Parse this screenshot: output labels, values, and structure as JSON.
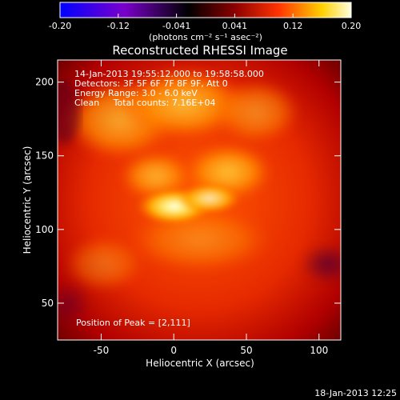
{
  "chart_data": {
    "type": "heatmap",
    "title": "Reconstructed RHESSI Image",
    "xlabel": "Heliocentric X (arcsec)",
    "ylabel": "Heliocentric Y (arcsec)",
    "xlim": [
      -80,
      115
    ],
    "ylim": [
      25,
      215
    ],
    "x_ticks": [
      -50,
      0,
      50,
      100
    ],
    "y_ticks": [
      50,
      100,
      150,
      200
    ],
    "colorbar": {
      "range": [
        -0.2,
        0.2
      ],
      "ticks": [
        "-0.20",
        "-0.12",
        "-0.041",
        "0.041",
        "0.12",
        "0.20"
      ],
      "label": "(photons cm⁻² s⁻¹ asec⁻²)"
    },
    "annotations": [
      "14-Jan-2013 19:55:12.000 to 19:58:58.000",
      "Detectors: 3F 5F 6F 7F 8F 9F, Att 0",
      "Energy Range: 3.0 - 6.0 keV",
      "Clean     Total counts: 7.16E+04"
    ],
    "peak_label": "Position of Peak = [2,111]",
    "peak_position": [
      2,
      111
    ],
    "timestamp": "18-Jan-2013 12:25",
    "colormap": [
      "#0000ff",
      "#7a00cc",
      "#000000",
      "#8b0000",
      "#ff3300",
      "#ffd000",
      "#ffffe0"
    ]
  }
}
